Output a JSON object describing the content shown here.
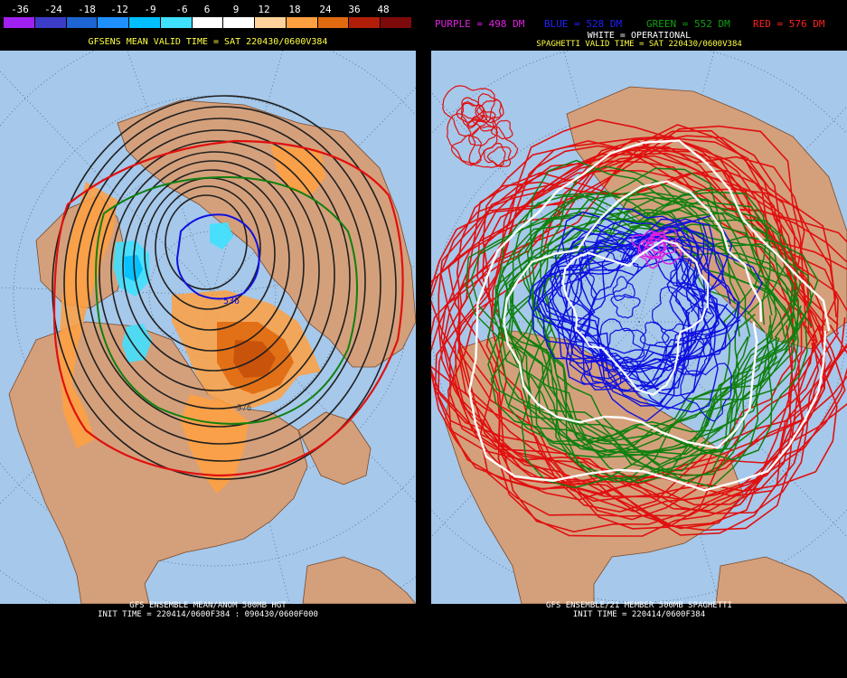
{
  "left": {
    "legend": {
      "labels": [
        "-36",
        "-24",
        "-18",
        "-12",
        "-9",
        "-6",
        "6",
        "9",
        "12",
        "18",
        "24",
        "36",
        "48"
      ],
      "colors": [
        "#a020f0",
        "#3c3cc8",
        "#1e64d2",
        "#1e90ff",
        "#00bfff",
        "#40e0ff",
        "#ffffff",
        "#ffffff",
        "#ffd29b",
        "#ffa040",
        "#e06a10",
        "#b01e0a",
        "#7d0a0a"
      ]
    },
    "title": "GFSENS MEAN VALID TIME = SAT 220430/0600V384",
    "contour_label_1": "536",
    "contour_label_2": "576",
    "footer_line1": "GFS ENSEMBLE MEAN/ANOM 500MB HGT",
    "footer_line2": "INIT TIME = 220414/0600F384 : 090430/0600F000"
  },
  "right": {
    "key": {
      "purple": "PURPLE = 498 DM",
      "blue": "BLUE = 528 DM",
      "green": "GREEN = 552 DM",
      "red": "RED = 576 DM"
    },
    "title": "SPAGHETTI VALID TIME = SAT 220430/0600V384",
    "operational": "WHITE = OPERATIONAL",
    "footer_line1": "GFS ENSEMBLE/21 MEMBER 500MB SPAGHETTI",
    "footer_line2": "INIT TIME = 220414/0600F384"
  },
  "colors": {
    "ocean": "#a6c8ea",
    "land": "#d4a07c",
    "purple": "#e020e0",
    "blue": "#1010e0",
    "green": "#108010",
    "red": "#e01010",
    "white": "#ffffff",
    "yellow": "#ffff40"
  }
}
